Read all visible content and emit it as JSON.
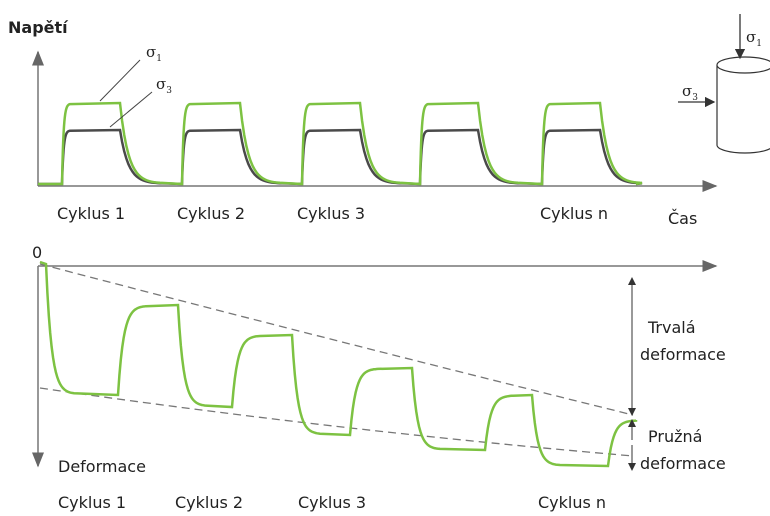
{
  "top": {
    "y_label": "Napětí",
    "x_label": "Čas",
    "sigma1": {
      "symbol": "σ",
      "subscript": "1"
    },
    "sigma3": {
      "symbol": "σ",
      "subscript": "3"
    },
    "cycles": [
      "Cyklus 1",
      "Cyklus 2",
      "Cyklus 3",
      "Cyklus n"
    ]
  },
  "bottom": {
    "origin": "0",
    "y_label": "Deformace",
    "permanent": [
      "Trvalá",
      "deformace"
    ],
    "elastic": [
      "Pružná",
      "deformace"
    ],
    "cycles": [
      "Cyklus 1",
      "Cyklus 2",
      "Cyklus 3",
      "Cyklus n"
    ]
  },
  "cylinder": {
    "sigma1": {
      "symbol": "σ",
      "subscript": "1"
    },
    "sigma3": {
      "symbol": "σ",
      "subscript": "3"
    }
  }
}
